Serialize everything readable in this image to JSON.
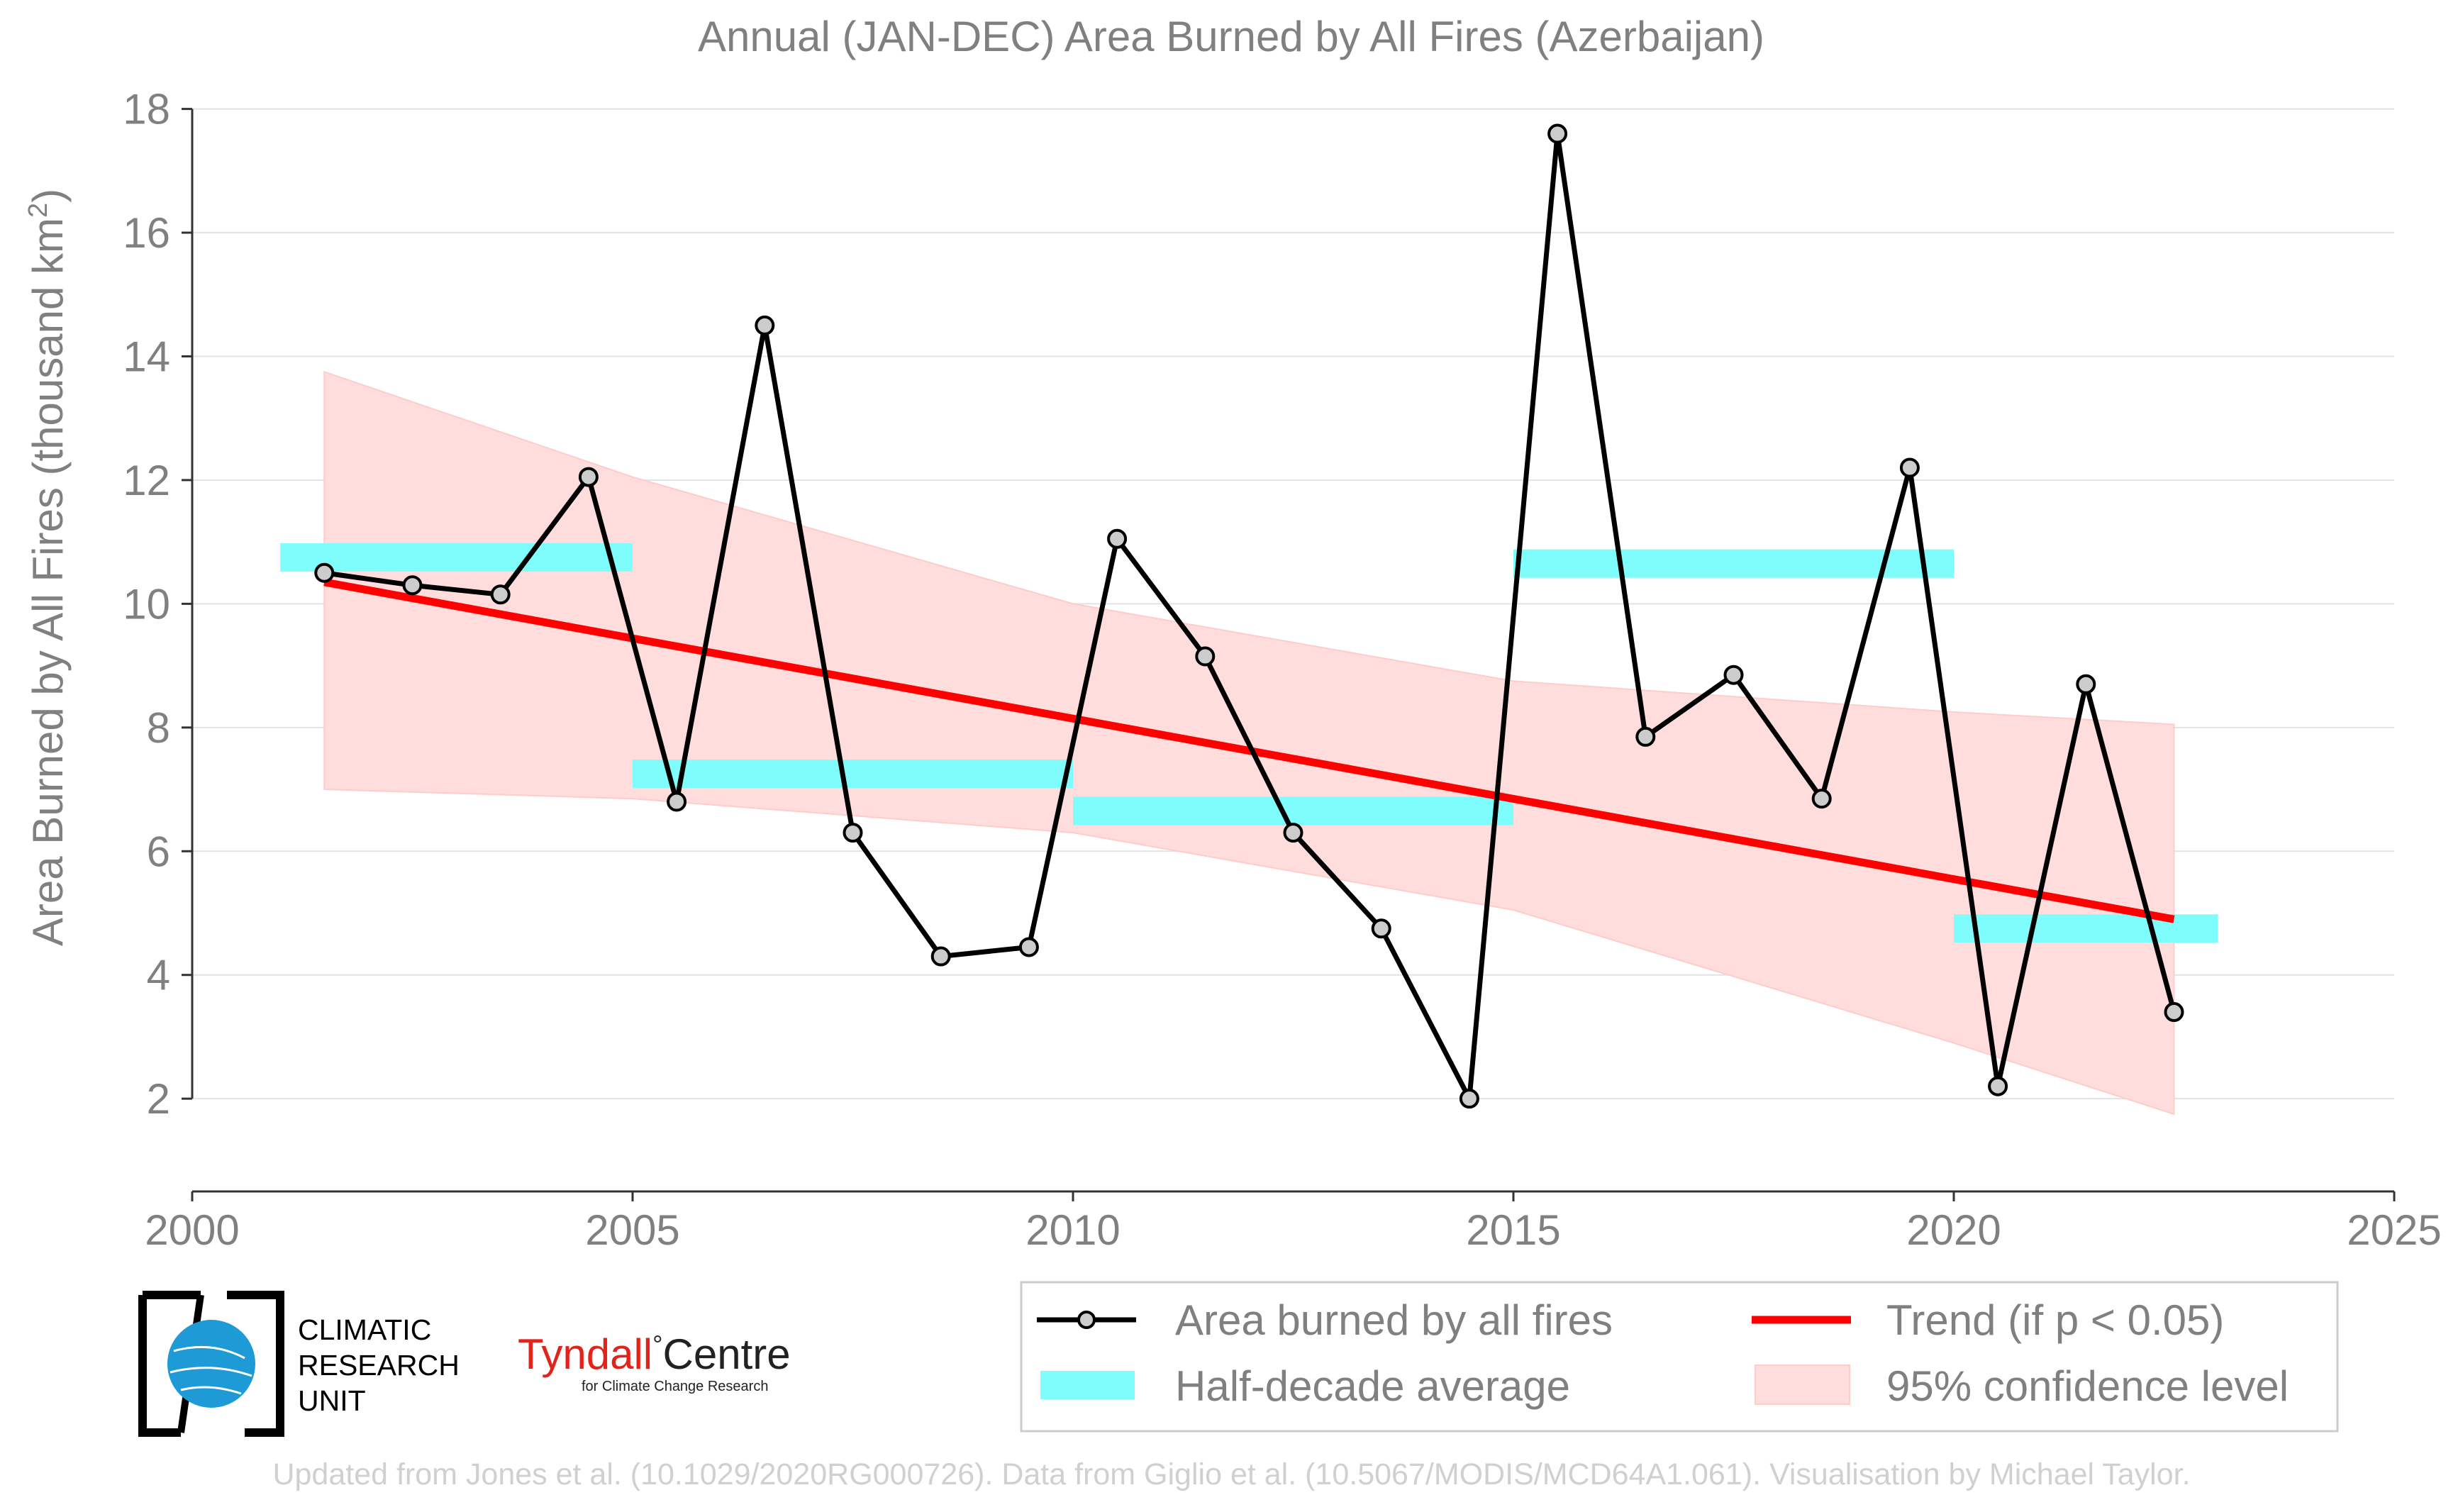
{
  "chart_data": {
    "type": "line",
    "title": "Annual (JAN-DEC) Area Burned by All Fires (Azerbaijan)",
    "ylabel": "Area Burned by All Fires (thousand km",
    "ylabel_sup": "2",
    "ylabel_close": ")",
    "xlim": [
      2000,
      2025
    ],
    "ylim": [
      0.5,
      18.5
    ],
    "xticks": [
      2000,
      2005,
      2010,
      2015,
      2020,
      2025
    ],
    "yticks": [
      2,
      4,
      6,
      8,
      10,
      12,
      14,
      16,
      18
    ],
    "grid": "horizontal",
    "series": [
      {
        "name": "Area burned by all fires",
        "color": "#000000",
        "x": [
          2001.5,
          2002.5,
          2003.5,
          2004.5,
          2005.5,
          2006.5,
          2007.5,
          2008.5,
          2009.5,
          2010.5,
          2011.5,
          2012.5,
          2013.5,
          2014.5,
          2015.5,
          2016.5,
          2017.5,
          2018.5,
          2019.5,
          2020.5,
          2021.5,
          2022.5
        ],
        "y": [
          10.5,
          10.3,
          10.15,
          12.05,
          6.8,
          14.5,
          6.3,
          4.3,
          4.45,
          11.05,
          9.15,
          6.3,
          4.75,
          2.0,
          17.6,
          7.85,
          8.85,
          6.85,
          12.2,
          2.2,
          8.7,
          3.4
        ]
      },
      {
        "name": "Half-decade average",
        "color": "#7ffcfc",
        "segments": [
          {
            "x0": 2001.0,
            "x1": 2005.0,
            "y": 10.75
          },
          {
            "x0": 2005.0,
            "x1": 2010.0,
            "y": 7.25
          },
          {
            "x0": 2010.0,
            "x1": 2015.0,
            "y": 6.65
          },
          {
            "x0": 2015.0,
            "x1": 2020.0,
            "y": 10.65
          },
          {
            "x0": 2020.0,
            "x1": 2023.0,
            "y": 4.75
          }
        ]
      },
      {
        "name": "Trend (if p < 0.05)",
        "color": "#ff0000",
        "x": [
          2001.5,
          2022.5
        ],
        "y": [
          10.35,
          4.9
        ]
      },
      {
        "name": "95% confidence level",
        "color": "#ffdddd",
        "x": [
          2001.5,
          2005,
          2010,
          2015,
          2020,
          2022.5
        ],
        "upper": [
          13.75,
          12.05,
          10.0,
          8.75,
          8.25,
          8.05
        ],
        "lower": [
          7.0,
          6.85,
          6.3,
          5.05,
          2.9,
          1.75
        ]
      }
    ],
    "legend": {
      "position": "bottom-right",
      "entries": [
        "Area burned by all fires",
        "Trend (if p < 0.05)",
        "Half-decade average",
        "95% confidence level"
      ]
    }
  },
  "logos": {
    "cru_lines": [
      "CLIMATIC",
      "RESEARCH",
      "UNIT"
    ],
    "tyndall_name": "Tyndall",
    "tyndall_degree": "°",
    "tyndall_centre": "Centre",
    "tyndall_sub": "for Climate Change Research"
  },
  "footer": "Updated from Jones et al. (10.1029/2020RG000726). Data from Giglio et al. (10.5067/MODIS/MCD64A1.061). Visualisation by Michael Taylor."
}
